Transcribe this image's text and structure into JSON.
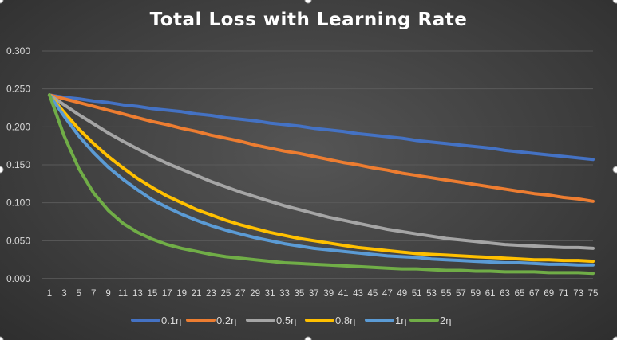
{
  "chart_data": {
    "type": "line",
    "title": "Total Loss with Learning Rate",
    "xlabel": "",
    "ylabel": "",
    "ylim": [
      0,
      0.3
    ],
    "yticks": [
      "0.000",
      "0.050",
      "0.100",
      "0.150",
      "0.200",
      "0.250",
      "0.300"
    ],
    "xticks": [
      "1",
      "3",
      "5",
      "7",
      "9",
      "11",
      "13",
      "15",
      "17",
      "19",
      "21",
      "23",
      "25",
      "27",
      "29",
      "31",
      "33",
      "35",
      "37",
      "39",
      "41",
      "43",
      "45",
      "47",
      "49",
      "51",
      "53",
      "55",
      "57",
      "59",
      "61",
      "63",
      "65",
      "67",
      "69",
      "71",
      "73",
      "75"
    ],
    "x": [
      1,
      3,
      5,
      7,
      9,
      11,
      13,
      15,
      17,
      19,
      21,
      23,
      25,
      27,
      29,
      31,
      33,
      35,
      37,
      39,
      41,
      43,
      45,
      47,
      49,
      51,
      53,
      55,
      57,
      59,
      61,
      63,
      65,
      67,
      69,
      71,
      73,
      75
    ],
    "grid": true,
    "legend": "bottom",
    "series": [
      {
        "name": "0.1η",
        "color": "#4472c4",
        "values": [
          0.242,
          0.239,
          0.237,
          0.234,
          0.232,
          0.229,
          0.227,
          0.224,
          0.222,
          0.22,
          0.217,
          0.215,
          0.212,
          0.21,
          0.208,
          0.205,
          0.203,
          0.201,
          0.198,
          0.196,
          0.194,
          0.191,
          0.189,
          0.187,
          0.185,
          0.182,
          0.18,
          0.178,
          0.176,
          0.174,
          0.172,
          0.169,
          0.167,
          0.165,
          0.163,
          0.161,
          0.159,
          0.157
        ]
      },
      {
        "name": "0.2η",
        "color": "#ed7d31",
        "values": [
          0.242,
          0.237,
          0.232,
          0.227,
          0.222,
          0.217,
          0.212,
          0.207,
          0.203,
          0.198,
          0.194,
          0.189,
          0.185,
          0.181,
          0.176,
          0.172,
          0.168,
          0.165,
          0.161,
          0.157,
          0.153,
          0.15,
          0.146,
          0.143,
          0.139,
          0.136,
          0.133,
          0.13,
          0.127,
          0.124,
          0.121,
          0.118,
          0.115,
          0.112,
          0.11,
          0.107,
          0.105,
          0.102
        ]
      },
      {
        "name": "0.5η",
        "color": "#a5a5a5",
        "values": [
          0.242,
          0.229,
          0.216,
          0.204,
          0.192,
          0.181,
          0.171,
          0.161,
          0.152,
          0.144,
          0.136,
          0.128,
          0.121,
          0.114,
          0.108,
          0.102,
          0.096,
          0.091,
          0.086,
          0.081,
          0.077,
          0.073,
          0.069,
          0.065,
          0.062,
          0.059,
          0.056,
          0.053,
          0.051,
          0.049,
          0.047,
          0.045,
          0.044,
          0.043,
          0.042,
          0.041,
          0.041,
          0.04
        ]
      },
      {
        "name": "0.8η",
        "color": "#ffc000",
        "values": [
          0.242,
          0.219,
          0.197,
          0.178,
          0.161,
          0.146,
          0.132,
          0.12,
          0.109,
          0.1,
          0.091,
          0.084,
          0.077,
          0.071,
          0.066,
          0.061,
          0.057,
          0.053,
          0.05,
          0.047,
          0.044,
          0.041,
          0.039,
          0.037,
          0.035,
          0.033,
          0.032,
          0.031,
          0.03,
          0.029,
          0.028,
          0.027,
          0.026,
          0.025,
          0.025,
          0.024,
          0.024,
          0.023
        ]
      },
      {
        "name": "1η",
        "color": "#5b9bd5",
        "values": [
          0.242,
          0.214,
          0.188,
          0.166,
          0.147,
          0.131,
          0.117,
          0.104,
          0.094,
          0.085,
          0.077,
          0.07,
          0.064,
          0.059,
          0.054,
          0.05,
          0.046,
          0.043,
          0.04,
          0.038,
          0.036,
          0.034,
          0.032,
          0.03,
          0.029,
          0.028,
          0.026,
          0.025,
          0.024,
          0.023,
          0.022,
          0.021,
          0.021,
          0.02,
          0.019,
          0.019,
          0.018,
          0.018
        ]
      },
      {
        "name": "2η",
        "color": "#70ad47",
        "values": [
          0.242,
          0.188,
          0.145,
          0.113,
          0.09,
          0.073,
          0.061,
          0.052,
          0.045,
          0.04,
          0.036,
          0.032,
          0.029,
          0.027,
          0.025,
          0.023,
          0.021,
          0.02,
          0.019,
          0.018,
          0.017,
          0.016,
          0.015,
          0.014,
          0.013,
          0.013,
          0.012,
          0.011,
          0.011,
          0.01,
          0.01,
          0.009,
          0.009,
          0.009,
          0.008,
          0.008,
          0.008,
          0.007
        ]
      }
    ]
  }
}
